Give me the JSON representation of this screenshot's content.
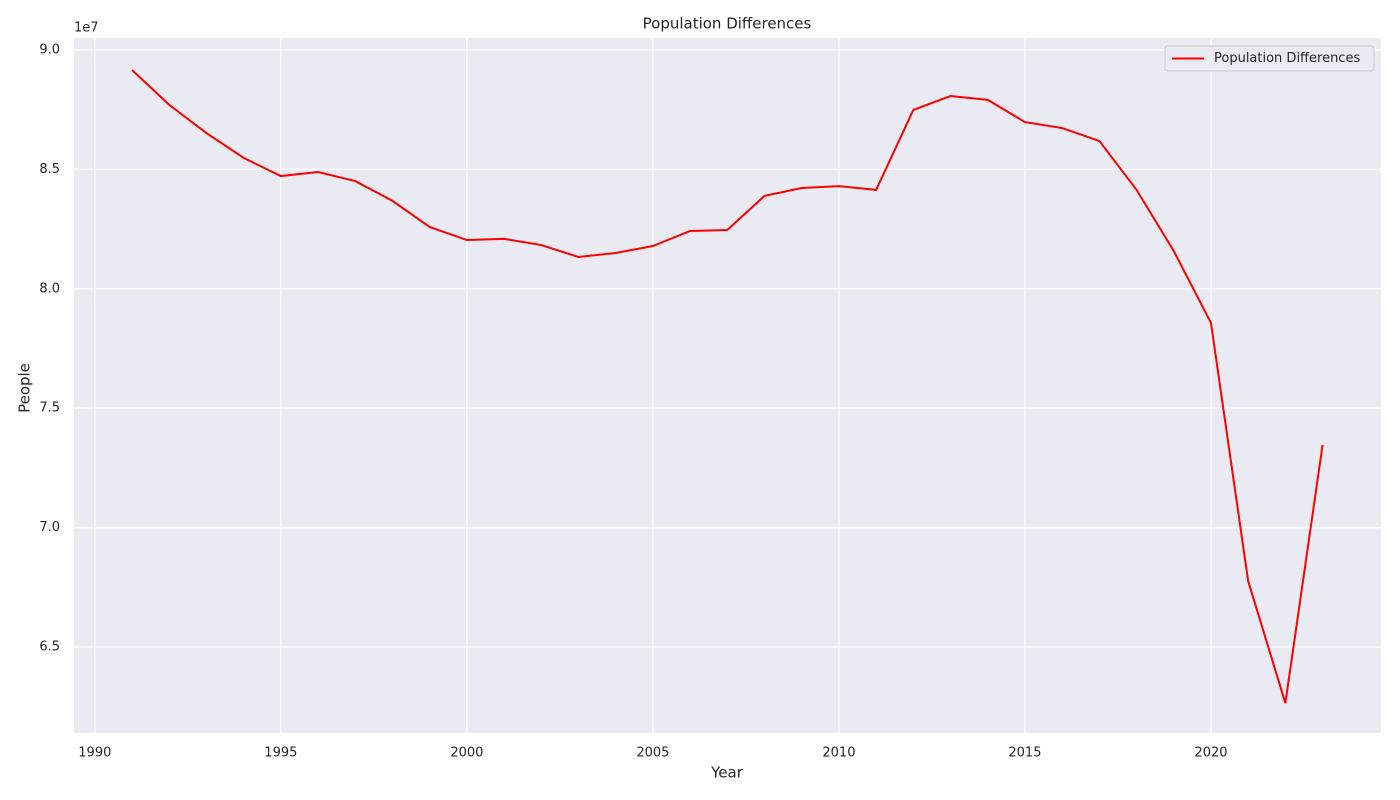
{
  "chart_data": {
    "type": "line",
    "title": "Population Differences",
    "x_label": "Year",
    "y_label": "People",
    "y_offset_label": "1e7",
    "x": [
      1991,
      1992,
      1993,
      1994,
      1995,
      1996,
      1997,
      1998,
      1999,
      2000,
      2001,
      2002,
      2003,
      2004,
      2005,
      2006,
      2007,
      2008,
      2009,
      2010,
      2011,
      2012,
      2013,
      2014,
      2015,
      2016,
      2017,
      2018,
      2019,
      2020,
      2021,
      2022,
      2023
    ],
    "series": [
      {
        "name": "Population Differences",
        "color": "#ff0000",
        "values": [
          89160000,
          87700000,
          86520000,
          85480000,
          84720000,
          84890000,
          84510000,
          83680000,
          82590000,
          82040000,
          82090000,
          81830000,
          81330000,
          81500000,
          81790000,
          82420000,
          82460000,
          83890000,
          84220000,
          84300000,
          84140000,
          87490000,
          88070000,
          87910000,
          86980000,
          86730000,
          86190000,
          84140000,
          81580000,
          78570000,
          67760000,
          62650000,
          73460000
        ]
      }
    ],
    "xlim": [
      1989.44,
      2024.57
    ],
    "ylim": [
      61400000,
      90500000
    ],
    "xticks": [
      1990,
      1995,
      2000,
      2005,
      2010,
      2015,
      2020
    ],
    "yticks": [
      {
        "value": 65000000,
        "label": "6.5"
      },
      {
        "value": 70000000,
        "label": "7.0"
      },
      {
        "value": 75000000,
        "label": "7.5"
      },
      {
        "value": 80000000,
        "label": "8.0"
      },
      {
        "value": 85000000,
        "label": "8.5"
      },
      {
        "value": 90000000,
        "label": "9.0"
      }
    ],
    "grid": true,
    "legend_position": "upper-right",
    "background": "#eaeaf2"
  }
}
